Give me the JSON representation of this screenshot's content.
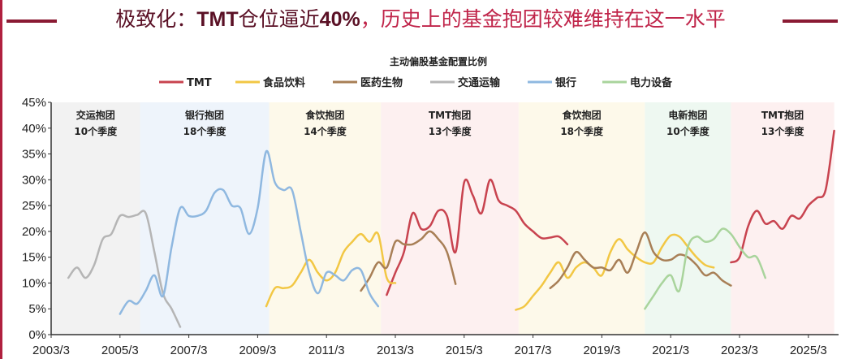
{
  "header": {
    "title_part1": "极致化：",
    "title_tmt": "TMT",
    "title_part2": "仓位逼近",
    "title_pct": "40%",
    "title_part3": "，历史上的基金抱团较难维持在这一水平"
  },
  "chart_data": {
    "type": "line",
    "title": "主动偏股基金配置比例",
    "xlabel": "",
    "ylabel": "",
    "ylim": [
      0,
      45
    ],
    "yticks": [
      "0%",
      "5%",
      "10%",
      "15%",
      "20%",
      "25%",
      "30%",
      "35%",
      "40%",
      "45%"
    ],
    "xticks": [
      "2003/3",
      "2005/3",
      "2007/3",
      "2009/3",
      "2011/3",
      "2013/3",
      "2015/3",
      "2017/3",
      "2019/3",
      "2021/3",
      "2023/3",
      "2025/3"
    ],
    "xlim": [
      "2003/3",
      "2025/12"
    ],
    "grid": false,
    "legend_position": "top",
    "bands": [
      {
        "label1": "交运抱团",
        "label2": "10个季度",
        "start": "2003/3",
        "end": "2005/10",
        "color": "#f2f2f2"
      },
      {
        "label1": "银行抱团",
        "label2": "18个季度",
        "start": "2005/10",
        "end": "2009/7",
        "color": "#eef4fb"
      },
      {
        "label1": "食饮抱团",
        "label2": "14个季度",
        "start": "2009/7",
        "end": "2012/10",
        "color": "#fdf9ea"
      },
      {
        "label1": "TMT抱团",
        "label2": "13个季度",
        "start": "2012/10",
        "end": "2016/10",
        "color": "#fdf0f0"
      },
      {
        "label1": "食饮抱团",
        "label2": "18个季度",
        "start": "2016/10",
        "end": "2020/6",
        "color": "#fdf9ea"
      },
      {
        "label1": "电新抱团",
        "label2": "10个季度",
        "start": "2020/6",
        "end": "2022/12",
        "color": "#eef8f1"
      },
      {
        "label1": "TMT抱团",
        "label2": "13个季度",
        "start": "2022/12",
        "end": "2025/12",
        "color": "#fdf0f0"
      }
    ],
    "series": [
      {
        "name": "TMT",
        "color": "#c8434f",
        "segments": [
          {
            "x": [
              "2012/12",
              "2013/3",
              "2013/6",
              "2013/9",
              "2013/12",
              "2014/3",
              "2014/6",
              "2014/9",
              "2014/12",
              "2015/3",
              "2015/6",
              "2015/9",
              "2015/12",
              "2016/3",
              "2016/6",
              "2016/9",
              "2016/12",
              "2017/3",
              "2017/6",
              "2017/9",
              "2017/12",
              "2018/3"
            ],
            "y": [
              7.7,
              12,
              16,
              23.5,
              20.5,
              21,
              24,
              23,
              16,
              29.5,
              27,
              23.5,
              30,
              26,
              25,
              24,
              21.5,
              20,
              18.7,
              18.8,
              19,
              17.5
            ]
          },
          {
            "x": [
              "2022/12",
              "2023/3",
              "2023/6",
              "2023/9",
              "2023/12",
              "2024/3",
              "2024/6",
              "2024/9",
              "2024/12",
              "2025/3",
              "2025/6",
              "2025/9",
              "2025/12"
            ],
            "y": [
              14,
              15,
              21,
              24,
              21.5,
              22,
              20.5,
              23,
              22.5,
              25,
              26.5,
              28,
              39.5
            ]
          }
        ]
      },
      {
        "name": "食品饮料",
        "color": "#f2c744",
        "segments": [
          {
            "x": [
              "2009/6",
              "2009/9",
              "2009/12",
              "2010/3",
              "2010/6",
              "2010/9",
              "2010/12",
              "2011/3",
              "2011/6",
              "2011/9",
              "2011/12",
              "2012/3",
              "2012/6",
              "2012/9",
              "2012/12",
              "2013/3"
            ],
            "y": [
              5.5,
              9,
              9,
              9.5,
              12,
              14.5,
              12,
              10.5,
              12,
              16,
              18,
              19.5,
              18,
              19.5,
              11,
              10
            ]
          },
          {
            "x": [
              "2016/9",
              "2016/12",
              "2017/3",
              "2017/6",
              "2017/9",
              "2017/12",
              "2018/3",
              "2018/6",
              "2018/9",
              "2018/12",
              "2019/3",
              "2019/6",
              "2019/9",
              "2019/12",
              "2020/3",
              "2020/6",
              "2020/9",
              "2020/12",
              "2021/3",
              "2021/6",
              "2021/9",
              "2021/12",
              "2022/3",
              "2022/6"
            ],
            "y": [
              4.8,
              5.5,
              7.5,
              9.5,
              12,
              14,
              11,
              13,
              14,
              13,
              11.5,
              16,
              18.5,
              16.5,
              15,
              14,
              14,
              17,
              19.2,
              19,
              17,
              15,
              13.5,
              13
            ]
          }
        ]
      },
      {
        "name": "医药生物",
        "color": "#a87f56",
        "segments": [
          {
            "x": [
              "2012/3",
              "2012/6",
              "2012/9",
              "2012/12",
              "2013/3",
              "2013/6",
              "2013/9",
              "2013/12",
              "2014/3",
              "2014/6",
              "2014/9",
              "2014/12"
            ],
            "y": [
              8.5,
              11,
              14,
              13,
              18,
              17.5,
              17.5,
              18.5,
              20,
              18.5,
              16,
              9.8
            ]
          },
          {
            "x": [
              "2017/9",
              "2017/12",
              "2018/3",
              "2018/6",
              "2018/9",
              "2018/12",
              "2019/3",
              "2019/6",
              "2019/9",
              "2019/12",
              "2020/3",
              "2020/6",
              "2020/9",
              "2020/12",
              "2021/3",
              "2021/6",
              "2021/9",
              "2021/12",
              "2022/3",
              "2022/6",
              "2022/9",
              "2022/12"
            ],
            "y": [
              9,
              10.5,
              13,
              16,
              14.5,
              13,
              13,
              12.5,
              14.5,
              12,
              16,
              19.8,
              16,
              14.5,
              14.5,
              15.5,
              15,
              13.5,
              11.5,
              12,
              10.5,
              9.5
            ]
          }
        ]
      },
      {
        "name": "交通运输",
        "color": "#b5b5b5",
        "segments": [
          {
            "x": [
              "2003/9",
              "2003/12",
              "2004/3",
              "2004/6",
              "2004/9",
              "2004/12",
              "2005/3",
              "2005/6",
              "2005/9",
              "2005/12",
              "2006/3",
              "2006/6",
              "2006/9",
              "2006/12"
            ],
            "y": [
              11,
              13,
              11,
              13.5,
              18.5,
              19.5,
              23,
              22.8,
              23.2,
              23.5,
              16,
              8,
              5,
              1.5
            ]
          }
        ]
      },
      {
        "name": "银行",
        "color": "#8fb8e0",
        "segments": [
          {
            "x": [
              "2005/3",
              "2005/6",
              "2005/9",
              "2005/12",
              "2006/3",
              "2006/6",
              "2006/9",
              "2006/12",
              "2007/3",
              "2007/6",
              "2007/9",
              "2007/12",
              "2008/3",
              "2008/6",
              "2008/9",
              "2008/12",
              "2009/3",
              "2009/6",
              "2009/9",
              "2009/12",
              "2010/3",
              "2010/6",
              "2010/9",
              "2010/12",
              "2011/3",
              "2011/6",
              "2011/9",
              "2011/12",
              "2012/3",
              "2012/6",
              "2012/9"
            ],
            "y": [
              4,
              6.5,
              6,
              8.5,
              11.5,
              7.5,
              17,
              24.5,
              23,
              23,
              24,
              27.5,
              28,
              25,
              24.5,
              19.5,
              24.5,
              35.5,
              29.5,
              28,
              28,
              20,
              12,
              8,
              12,
              11.5,
              10.5,
              12.5,
              12.5,
              8,
              5.5
            ]
          }
        ]
      },
      {
        "name": "电力设备",
        "color": "#a9d49c",
        "segments": [
          {
            "x": [
              "2020/6",
              "2020/9",
              "2020/12",
              "2021/3",
              "2021/6",
              "2021/9",
              "2021/12",
              "2022/3",
              "2022/6",
              "2022/9",
              "2022/12",
              "2023/3",
              "2023/6",
              "2023/9",
              "2023/12"
            ],
            "y": [
              5,
              7.5,
              10,
              11.5,
              8.5,
              17,
              19,
              18,
              18.5,
              20.5,
              19.5,
              17,
              15,
              15,
              11
            ]
          }
        ]
      }
    ]
  }
}
